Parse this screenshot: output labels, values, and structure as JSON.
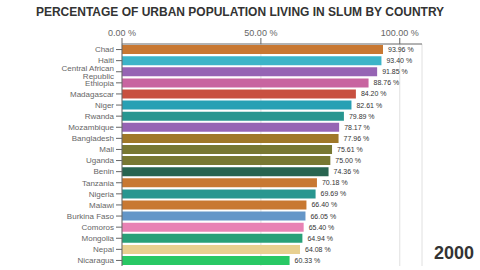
{
  "chart_data": {
    "type": "bar",
    "orientation": "horizontal",
    "title": "PERCENTAGE OF URBAN POPULATION LIVING IN SLUM BY COUNTRY",
    "annotations": [
      "2000"
    ],
    "categories": [
      "Chad",
      "Haiti",
      "Central African Republic",
      "Ethiopia",
      "Madagascar",
      "Niger",
      "Rwanda",
      "Mozambique",
      "Bangladesh",
      "Mali",
      "Uganda",
      "Benin",
      "Tanzania",
      "Nigeria",
      "Malawi",
      "Burkina Faso",
      "Comoros",
      "Mongolia",
      "Nepal",
      "Nicaragua"
    ],
    "values": [
      93.96,
      93.4,
      91.85,
      88.76,
      84.2,
      82.61,
      79.89,
      78.17,
      77.96,
      75.61,
      75.0,
      74.36,
      70.18,
      69.69,
      66.4,
      66.05,
      65.4,
      64.94,
      64.08,
      60.33
    ],
    "value_labels": [
      "93.96 %",
      "93.40 %",
      "91.85 %",
      "88.76 %",
      "84.20 %",
      "82.61 %",
      "79.89 %",
      "78.17 %",
      "77.96 %",
      "75.61 %",
      "75.00 %",
      "74.36 %",
      "70.18 %",
      "69.69 %",
      "66.40 %",
      "66.05 %",
      "65.40 %",
      "64.94 %",
      "64.08 %",
      "60.33 %"
    ],
    "colors": [
      "#c87832",
      "#3cb4c8",
      "#9664b4",
      "#c864a0",
      "#c85040",
      "#28a0b4",
      "#289690",
      "#9664b4",
      "#a07828",
      "#787832",
      "#787832",
      "#286450",
      "#c87832",
      "#289690",
      "#c87832",
      "#6496c8",
      "#e882b4",
      "#28a078",
      "#e8d090",
      "#28c864"
    ],
    "xlim": [
      0,
      108
    ],
    "xticks": [
      {
        "value": 0,
        "label": "0.00 %"
      },
      {
        "value": 50,
        "label": "50.00 %"
      },
      {
        "value": 100,
        "label": "100.00 %"
      }
    ],
    "grid": true,
    "data_labels": true
  }
}
